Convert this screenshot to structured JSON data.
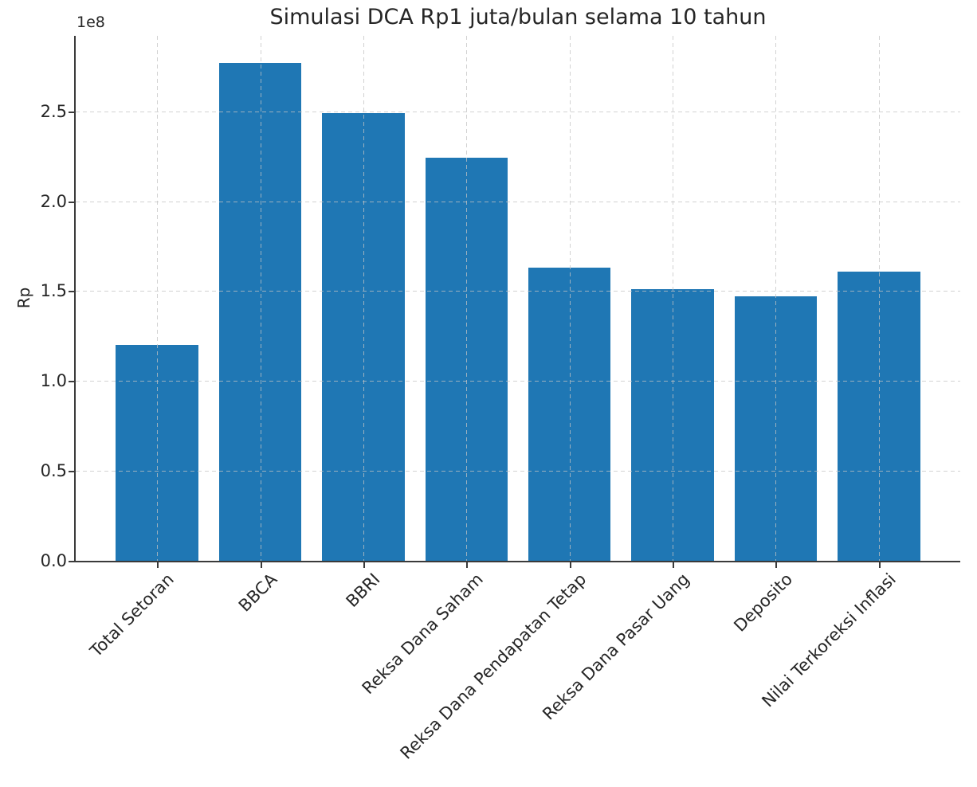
{
  "chart_data": {
    "type": "bar",
    "title": "Simulasi DCA Rp1 juta/bulan selama 10 tahun",
    "xlabel": "",
    "ylabel": "Rp",
    "y_axis_offset_label": "1e8",
    "categories": [
      "Total Setoran",
      "BBCA",
      "BBRI",
      "Reksa Dana Saham",
      "Reksa Dana Pendapatan Tetap",
      "Reksa Dana Pasar Uang",
      "Deposito",
      "Nilai Terkoreksi Inflasi"
    ],
    "values": [
      1.2,
      2.77,
      2.49,
      2.24,
      1.63,
      1.51,
      1.47,
      1.61
    ],
    "values_unit": "1e8",
    "ytick_labels": [
      "0.0",
      "0.5",
      "1.0",
      "1.5",
      "2.0",
      "2.5"
    ],
    "ytick_values": [
      0,
      0.5,
      1.0,
      1.5,
      2.0,
      2.5
    ],
    "ylim": [
      0,
      2.92
    ],
    "grid": true,
    "grid_style": "dashed",
    "grid_over_bars": true,
    "legend": false,
    "xtick_rotation_deg": 45,
    "colors": {
      "bar": "#1f77b4",
      "grid": "#c3c3c3",
      "spine": "#3a3a3a",
      "text": "#262626",
      "background": "#ffffff"
    }
  }
}
